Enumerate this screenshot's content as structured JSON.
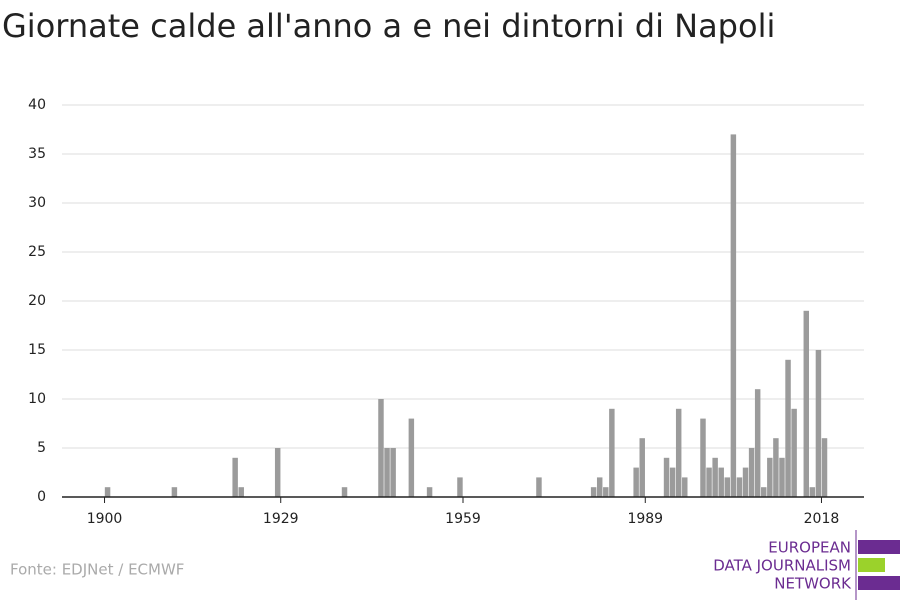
{
  "chart_data": {
    "type": "bar",
    "title": "Giornate calde all'anno a e nei dintorni di Napoli",
    "x": [
      1900,
      1911,
      1921,
      1922,
      1928,
      1939,
      1945,
      1946,
      1947,
      1950,
      1953,
      1958,
      1971,
      1980,
      1981,
      1982,
      1983,
      1987,
      1988,
      1992,
      1993,
      1994,
      1995,
      1998,
      1999,
      2000,
      2001,
      2002,
      2003,
      2004,
      2005,
      2006,
      2007,
      2008,
      2009,
      2010,
      2011,
      2012,
      2013,
      2015,
      2016,
      2017,
      2018
    ],
    "values": [
      1,
      1,
      4,
      1,
      5,
      1,
      10,
      5,
      5,
      8,
      1,
      2,
      2,
      1,
      2,
      1,
      9,
      3,
      6,
      4,
      3,
      9,
      2,
      8,
      3,
      4,
      3,
      2,
      37,
      2,
      3,
      5,
      11,
      1,
      4,
      6,
      4,
      14,
      9,
      19,
      1,
      15,
      6
    ],
    "color": "#9b9b9b",
    "xlim": [
      1893,
      2025
    ],
    "xticks": [
      1900,
      1929,
      1959,
      1989,
      2018
    ],
    "ylim": [
      0,
      40
    ],
    "yticks": [
      0,
      5,
      10,
      15,
      20,
      25,
      30,
      35,
      40
    ],
    "grid": true,
    "source": "Fonte: EDJNet / ECMWF"
  },
  "logo": {
    "lines": [
      "EUROPEAN",
      "DATA JOURNALISM",
      "NETWORK"
    ]
  }
}
